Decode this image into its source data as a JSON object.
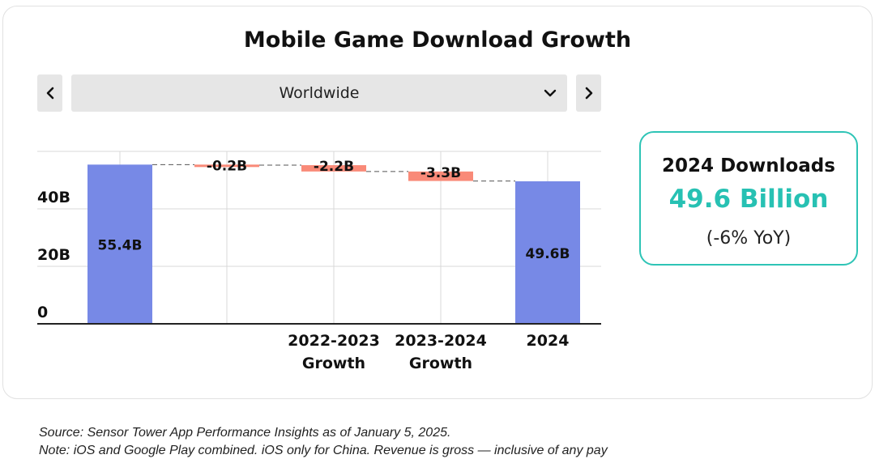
{
  "title": "Mobile Game Download Growth",
  "selector": {
    "region": "Worldwide",
    "prev_icon": "chevron-left-icon",
    "next_icon": "chevron-right-icon",
    "dropdown_icon": "chevron-down-icon"
  },
  "kpi": {
    "label": "2024 Downloads",
    "value": "49.6 Billion",
    "change": "(-6% YoY)",
    "accent_color": "#2ec4b6"
  },
  "footnotes": {
    "source": "Source: Sensor Tower App Performance Insights as of January 5, 2025.",
    "note": "Note: iOS and Google Play combined. iOS only for China. Revenue is gross — inclusive of any pay"
  },
  "chart_data": {
    "type": "bar",
    "subtype": "waterfall",
    "title": "",
    "xlabel": "",
    "ylabel": "",
    "ylim": [
      0,
      60
    ],
    "y_ticks": [
      {
        "value": 0,
        "label": "0"
      },
      {
        "value": 20,
        "label": "20B"
      },
      {
        "value": 40,
        "label": "40B"
      }
    ],
    "grid": true,
    "unit": "B",
    "colors": {
      "total": "#7789e6",
      "decrease": "#f98a78",
      "connector": "#555555",
      "grid": "#d9d9d9",
      "axis": "#222222"
    },
    "steps": [
      {
        "category": "",
        "kind": "total",
        "value": 55.4,
        "label": "55.4B"
      },
      {
        "category": "",
        "kind": "delta",
        "value": -0.2,
        "label": "-0.2B"
      },
      {
        "category": "2022-2023 Growth",
        "kind": "delta",
        "value": -2.2,
        "label": "-2.2B"
      },
      {
        "category": "2023-2024 Growth",
        "kind": "delta",
        "value": -3.3,
        "label": "-3.3B"
      },
      {
        "category": "2024",
        "kind": "total",
        "value": 49.6,
        "label": "49.6B"
      }
    ]
  }
}
